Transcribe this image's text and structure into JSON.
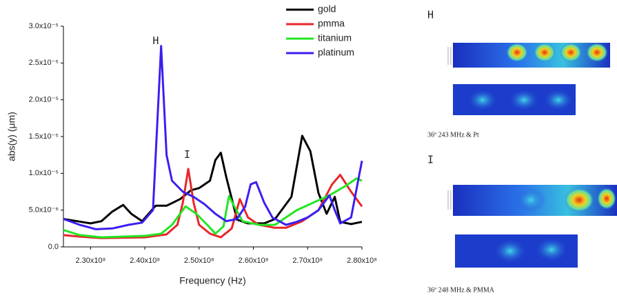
{
  "chart_data": {
    "type": "line",
    "x_label": "Frequency (Hz)",
    "y_label": "abs(y) (μm)",
    "xlim": [
      225000000.0,
      280000000.0
    ],
    "ylim": [
      0,
      3e-05
    ],
    "xticks": [
      {
        "value": 230000000.0,
        "label": "2.30x10⁸"
      },
      {
        "value": 240000000.0,
        "label": "2.40x10⁸"
      },
      {
        "value": 250000000.0,
        "label": "2.50x10⁸"
      },
      {
        "value": 260000000.0,
        "label": "2.60x10⁸"
      },
      {
        "value": 270000000.0,
        "label": "2.70x10⁸"
      },
      {
        "value": 280000000.0,
        "label": "2.80x10⁸"
      }
    ],
    "yticks": [
      {
        "value": 0,
        "label": "0.0"
      },
      {
        "value": 5e-06,
        "label": "5.0x10⁻⁶"
      },
      {
        "value": 1e-05,
        "label": "1.0x10⁻⁵"
      },
      {
        "value": 1.5e-05,
        "label": "1.5x10⁻⁵"
      },
      {
        "value": 2e-05,
        "label": "2.0x10⁻⁵"
      },
      {
        "value": 2.5e-05,
        "label": "2.5x10⁻⁵"
      },
      {
        "value": 3e-05,
        "label": "3.0x10⁻⁵"
      }
    ],
    "annotations": [
      {
        "text": "H",
        "x": 242000000.0,
        "y": 2.8e-05
      },
      {
        "text": "I",
        "x": 247800000.0,
        "y": 1.25e-05
      }
    ],
    "series": [
      {
        "name": "gold",
        "color": "#000000",
        "x": [
          225000000.0,
          227500000.0,
          230000000.0,
          232000000.0,
          234000000.0,
          236000000.0,
          237500000.0,
          239500000.0,
          242000000.0,
          244000000.0,
          246500000.0,
          248500000.0,
          250000000.0,
          252000000.0,
          253000000.0,
          254000000.0,
          255000000.0,
          257000000.0,
          259000000.0,
          262000000.0,
          264000000.0,
          267000000.0,
          269000000.0,
          270500000.0,
          272000000.0,
          273500000.0,
          275000000.0,
          276000000.0,
          278000000.0,
          280000000.0
        ],
        "values": [
          3.8e-06,
          3.5e-06,
          3.2e-06,
          3.5e-06,
          4.8e-06,
          5.7e-06,
          4.5e-06,
          3.5e-06,
          5.6e-06,
          5.6e-06,
          6.5e-06,
          7.7e-06,
          8e-06,
          9e-06,
          1.18e-05,
          1.28e-05,
          9.5e-06,
          3.7e-06,
          3.2e-06,
          3.2e-06,
          3.8e-06,
          6.8e-06,
          1.51e-05,
          1.3e-05,
          7.3e-06,
          4.5e-06,
          6.8e-06,
          3.4e-06,
          3.1e-06,
          3.4e-06
        ]
      },
      {
        "name": "pmma",
        "color": "#e8262a",
        "x": [
          225000000.0,
          228000000.0,
          232000000.0,
          240000000.0,
          244000000.0,
          246000000.0,
          247000000.0,
          248000000.0,
          249000000.0,
          250000000.0,
          252000000.0,
          254000000.0,
          256000000.0,
          257500000.0,
          259000000.0,
          261000000.0,
          264000000.0,
          266000000.0,
          269000000.0,
          272000000.0,
          274500000.0,
          276000000.0,
          278000000.0,
          280000000.0
        ],
        "values": [
          1.6e-06,
          1.4e-06,
          1.2e-06,
          1.3e-06,
          1.7e-06,
          3e-06,
          6e-06,
          1.06e-05,
          6e-06,
          3e-06,
          1.8e-06,
          1.3e-06,
          2.5e-06,
          6.5e-06,
          4e-06,
          3e-06,
          2.6e-06,
          2.6e-06,
          3.5e-06,
          5e-06,
          8.5e-06,
          9.8e-06,
          7.5e-06,
          5.5e-06
        ]
      },
      {
        "name": "titanium",
        "color": "#22e622",
        "x": [
          225000000.0,
          228000000.0,
          232000000.0,
          240000000.0,
          243000000.0,
          245000000.0,
          247500000.0,
          249500000.0,
          251500000.0,
          253000000.0,
          254500000.0,
          255500000.0,
          256500000.0,
          258000000.0,
          261000000.0,
          264000000.0,
          266000000.0,
          268000000.0,
          271000000.0,
          274000000.0,
          277000000.0,
          279000000.0,
          280000000.0
        ],
        "values": [
          2.3e-06,
          1.6e-06,
          1.3e-06,
          1.5e-06,
          1.8e-06,
          3e-06,
          5.5e-06,
          4.5e-06,
          3e-06,
          1.8e-06,
          2.8e-06,
          6.9e-06,
          5.5e-06,
          3.5e-06,
          3e-06,
          3e-06,
          4e-06,
          5e-06,
          6e-06,
          7e-06,
          8.3e-06,
          9.3e-06,
          9e-06
        ]
      },
      {
        "name": "platinum",
        "color": "#3a1ff0",
        "x": [
          225000000.0,
          228000000.0,
          231000000.0,
          234000000.0,
          237000000.0,
          239500000.0,
          241500000.0,
          243000000.0,
          244000000.0,
          245000000.0,
          247000000.0,
          249000000.0,
          251000000.0,
          253000000.0,
          255000000.0,
          257000000.0,
          258500000.0,
          259500000.0,
          260500000.0,
          262000000.0,
          263500000.0,
          266000000.0,
          268000000.0,
          270000000.0,
          272000000.0,
          274000000.0,
          275000000.0,
          276000000.0,
          278000000.0,
          280000000.0
        ],
        "values": [
          3.8e-06,
          3e-06,
          2.4e-06,
          2.5e-06,
          3e-06,
          3.3e-06,
          5e-06,
          2.73e-05,
          1.25e-05,
          9e-06,
          7.5e-06,
          6.8e-06,
          5.8e-06,
          4.5e-06,
          3.5e-06,
          3.8e-06,
          5.5e-06,
          8.5e-06,
          8.8e-06,
          6e-06,
          4e-06,
          3e-06,
          3.4e-06,
          4e-06,
          5e-06,
          7e-06,
          5e-06,
          3.2e-06,
          4e-06,
          1.17e-05
        ]
      }
    ]
  },
  "side_panels": [
    {
      "label": "H",
      "caption": "36º 243 MHz & Pt"
    },
    {
      "label": "I",
      "caption": "36º 248 MHz & PMMA"
    }
  ]
}
